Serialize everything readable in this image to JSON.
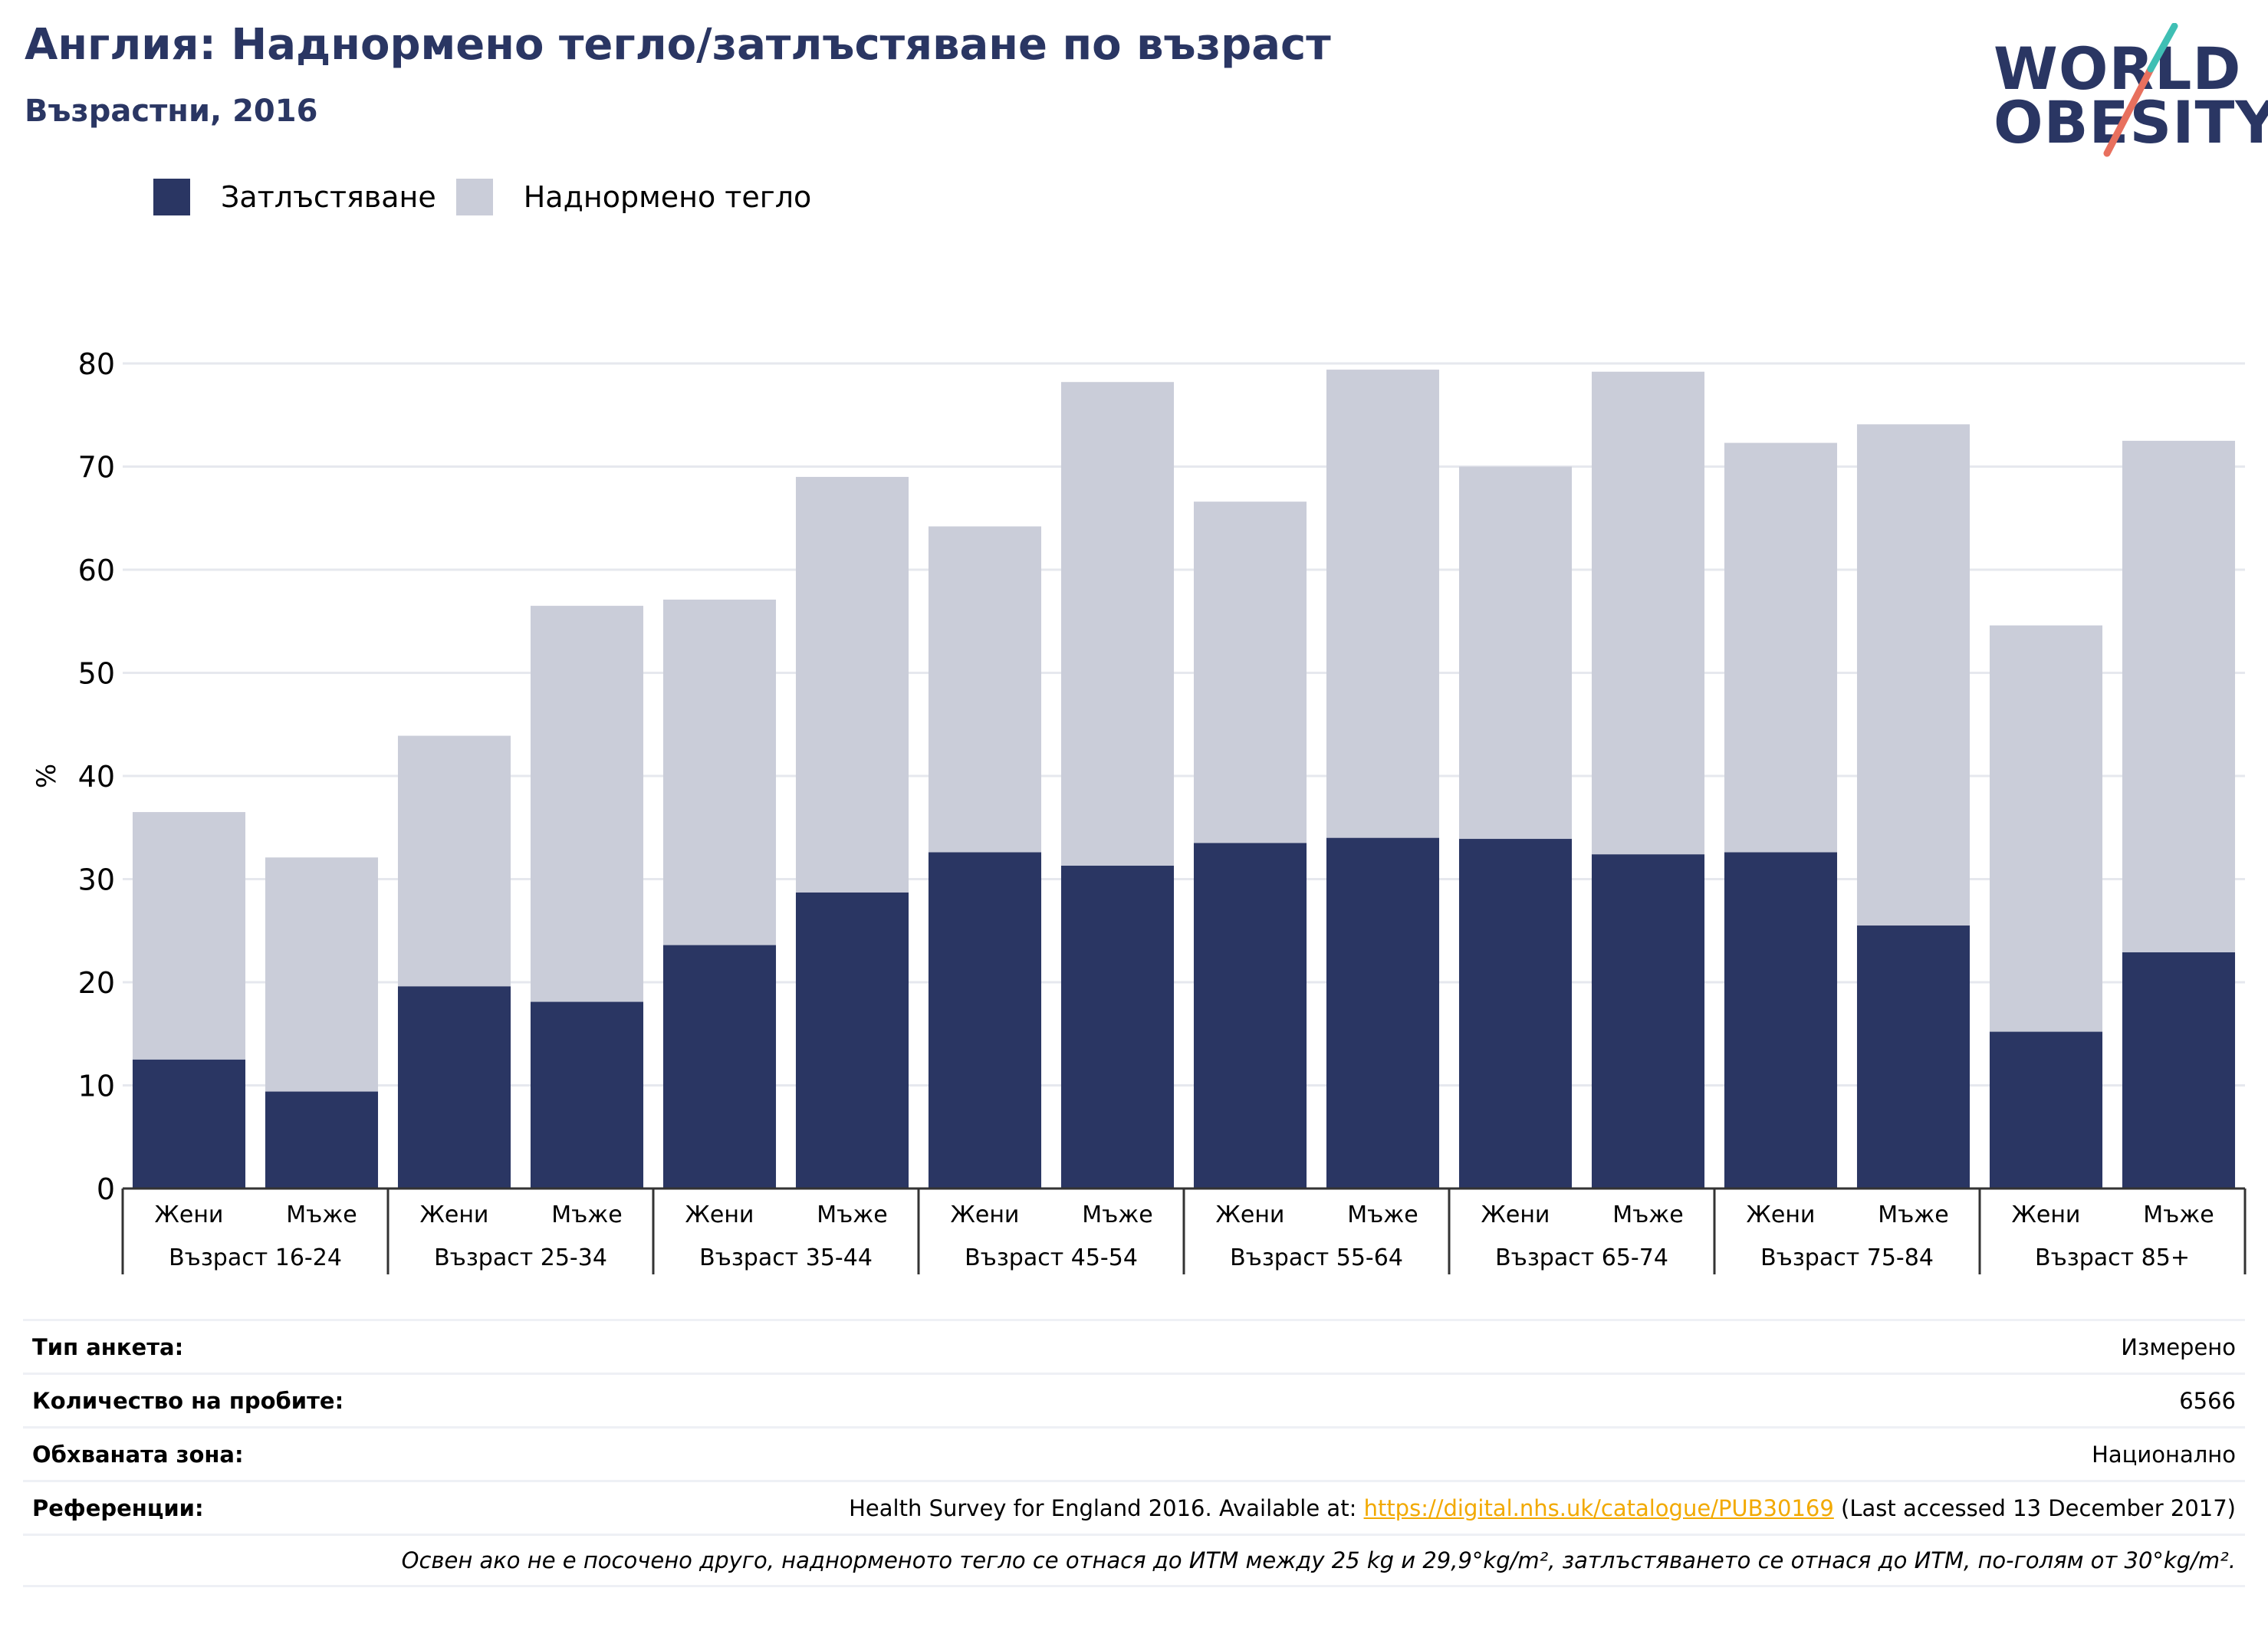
{
  "title": "Англия: Наднормено тегло/затлъстяване по възраст",
  "subtitle": "Възрастни, 2016",
  "logo": {
    "line1": "WORLD",
    "line2": "OBESITY"
  },
  "colors": {
    "obesity": "#2a3663",
    "overweight": "#cacdd9",
    "title": "#2a3663",
    "link": "#f2a900",
    "grid": "#e6e8ee"
  },
  "legend": {
    "items": [
      {
        "label": "Затлъстяване",
        "color": "#2a3663"
      },
      {
        "label": "Наднормено тегло",
        "color": "#cacdd9"
      }
    ]
  },
  "chart_data": {
    "type": "bar",
    "stacked": true,
    "ylabel": "%",
    "ylim": [
      0,
      80
    ],
    "yticks": [
      0,
      10,
      20,
      30,
      40,
      50,
      60,
      70,
      80
    ],
    "grid": true,
    "legend_position": "top-left",
    "groups": [
      "Възраст 16-24",
      "Възраст 25-34",
      "Възраст 35-44",
      "Възраст 45-54",
      "Възраст 55-64",
      "Възраст 65-74",
      "Възраст 75-84",
      "Възраст 85+"
    ],
    "categories": [
      "Жени",
      "Мъже",
      "Жени",
      "Мъже",
      "Жени",
      "Мъже",
      "Жени",
      "Мъже",
      "Жени",
      "Мъже",
      "Жени",
      "Мъже",
      "Жени",
      "Мъже",
      "Жени",
      "Мъже"
    ],
    "series": [
      {
        "name": "Затлъстяване",
        "values": [
          12.5,
          9.4,
          19.6,
          18.1,
          23.6,
          28.7,
          32.6,
          31.3,
          33.5,
          34.0,
          33.9,
          32.4,
          32.6,
          25.5,
          15.2,
          22.9
        ]
      },
      {
        "name": "Наднормено тегло",
        "values": [
          24.0,
          22.7,
          24.3,
          38.4,
          33.5,
          40.3,
          31.6,
          46.9,
          33.1,
          45.4,
          36.1,
          46.8,
          39.7,
          48.6,
          39.4,
          49.6
        ]
      }
    ]
  },
  "info": {
    "survey_type": {
      "label": "Тип анкета:",
      "value": "Измерено"
    },
    "sample_size": {
      "label": "Количество на пробите:",
      "value": "6566"
    },
    "area": {
      "label": "Обхваната зона:",
      "value": "Национално"
    },
    "references": {
      "label": "Референции:",
      "prefix": "Health Survey for England 2016. Available at: ",
      "link": "https://digital.nhs.uk/catalogue/PUB30169",
      "suffix": " (Last accessed 13 December 2017)"
    },
    "note": "Освен ако не е посочено друго, наднорменото тегло се отнася до ИТМ между 25 kg и 29,9°kg/m², затлъстяването се отнася до ИТМ, по-голям от 30°kg/m²."
  }
}
